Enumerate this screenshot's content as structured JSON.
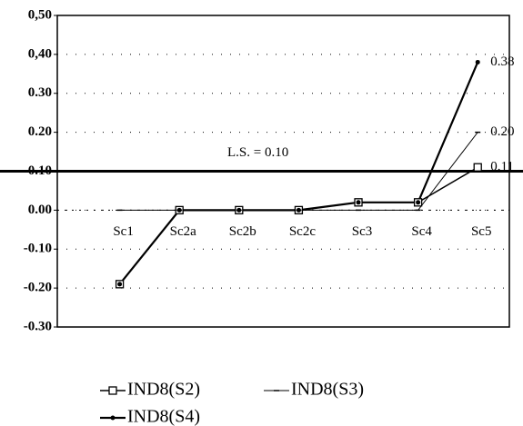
{
  "chart_data": {
    "type": "line",
    "categories": [
      "Sc1",
      "Sc2a",
      "Sc2b",
      "Sc2c",
      "Sc3",
      "Sc4",
      "Sc5"
    ],
    "series": [
      {
        "name": "IND8(S2)",
        "color": "#000000",
        "marker": "square",
        "values": [
          -0.19,
          0,
          0,
          0,
          0.02,
          0.02,
          0.11
        ],
        "value_labels": [
          null,
          null,
          null,
          null,
          null,
          null,
          "0.11"
        ]
      },
      {
        "name": "IND8(S3)",
        "color": "#000000",
        "marker": "dash",
        "values": [
          0,
          0,
          0,
          0,
          0,
          0,
          0.2
        ],
        "value_labels": [
          null,
          null,
          null,
          null,
          null,
          null,
          "0.20"
        ]
      },
      {
        "name": "IND8(S4)",
        "color": "#000000",
        "marker": "circle",
        "values": [
          -0.19,
          0,
          0,
          0,
          0.02,
          0.02,
          0.38
        ],
        "value_labels": [
          null,
          null,
          null,
          null,
          null,
          null,
          "0.38"
        ]
      }
    ],
    "threshold": {
      "value": 0.1,
      "label": "L.S. = 0.10"
    },
    "ylim": [
      -0.3,
      0.5
    ],
    "yticks": [
      {
        "value": 0.5,
        "label": "0,50"
      },
      {
        "value": 0.4,
        "label": "0,40"
      },
      {
        "value": 0.3,
        "label": "0.30"
      },
      {
        "value": 0.2,
        "label": "0.20"
      },
      {
        "value": 0.1,
        "label": "0.10"
      },
      {
        "value": 0,
        "label": "0.00"
      },
      {
        "value": -0.1,
        "label": "-0.10"
      },
      {
        "value": -0.2,
        "label": "-0.20"
      },
      {
        "value": -0.3,
        "label": "-0.30"
      }
    ],
    "grid": true
  }
}
